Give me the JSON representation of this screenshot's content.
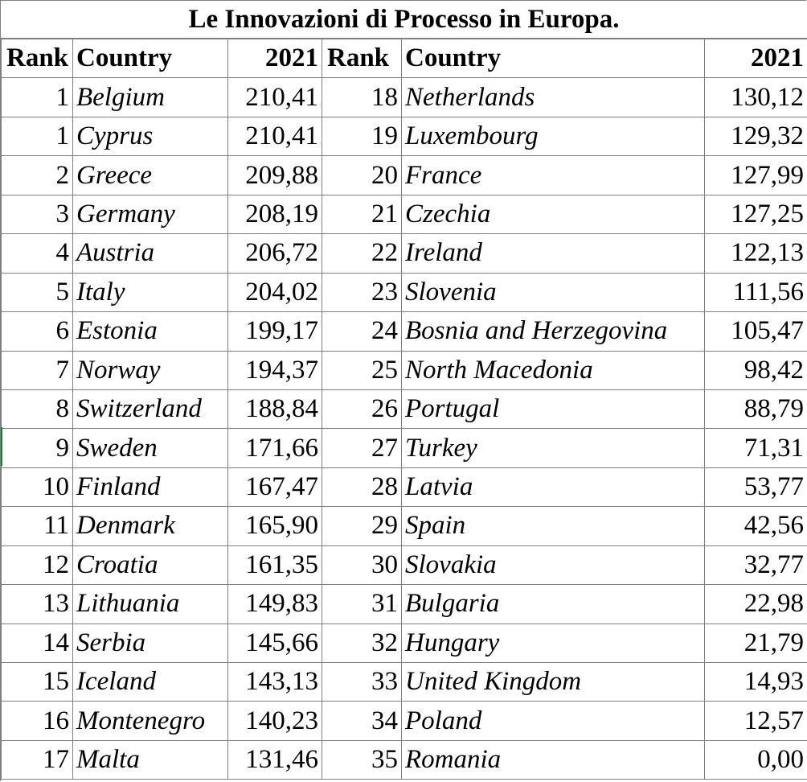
{
  "title": "Le Innovazioni di Processo in Europa.",
  "headers": {
    "rank": "Rank",
    "country": "Country",
    "year": "2021",
    "rank2": "Rank",
    "country2": "Country",
    "year2": "2021"
  },
  "rows": [
    {
      "l_rank": "1",
      "l_country": "Belgium",
      "l_value": "210,41",
      "r_rank": "18",
      "r_country": "Netherlands",
      "r_value": "130,12"
    },
    {
      "l_rank": "1",
      "l_country": "Cyprus",
      "l_value": "210,41",
      "r_rank": "19",
      "r_country": "Luxembourg",
      "r_value": "129,32"
    },
    {
      "l_rank": "2",
      "l_country": "Greece",
      "l_value": "209,88",
      "r_rank": "20",
      "r_country": "France",
      "r_value": "127,99"
    },
    {
      "l_rank": "3",
      "l_country": "Germany",
      "l_value": "208,19",
      "r_rank": "21",
      "r_country": "Czechia",
      "r_value": "127,25"
    },
    {
      "l_rank": "4",
      "l_country": "Austria",
      "l_value": "206,72",
      "r_rank": "22",
      "r_country": "Ireland",
      "r_value": "122,13"
    },
    {
      "l_rank": "5",
      "l_country": "Italy",
      "l_value": "204,02",
      "r_rank": "23",
      "r_country": "Slovenia",
      "r_value": "111,56"
    },
    {
      "l_rank": "6",
      "l_country": "Estonia",
      "l_value": "199,17",
      "r_rank": "24",
      "r_country": "Bosnia and Herzegovina",
      "r_value": "105,47"
    },
    {
      "l_rank": "7",
      "l_country": "Norway",
      "l_value": "194,37",
      "r_rank": "25",
      "r_country": "North Macedonia",
      "r_value": "98,42"
    },
    {
      "l_rank": "8",
      "l_country": "Switzerland",
      "l_value": "188,84",
      "r_rank": "26",
      "r_country": "Portugal",
      "r_value": "88,79"
    },
    {
      "l_rank": "9",
      "l_country": "Sweden",
      "l_value": "171,66",
      "r_rank": "27",
      "r_country": "Turkey",
      "r_value": "71,31"
    },
    {
      "l_rank": "10",
      "l_country": "Finland",
      "l_value": "167,47",
      "r_rank": "28",
      "r_country": "Latvia",
      "r_value": "53,77"
    },
    {
      "l_rank": "11",
      "l_country": "Denmark",
      "l_value": "165,90",
      "r_rank": "29",
      "r_country": "Spain",
      "r_value": "42,56"
    },
    {
      "l_rank": "12",
      "l_country": "Croatia",
      "l_value": "161,35",
      "r_rank": "30",
      "r_country": "Slovakia",
      "r_value": "32,77"
    },
    {
      "l_rank": "13",
      "l_country": "Lithuania",
      "l_value": "149,83",
      "r_rank": "31",
      "r_country": "Bulgaria",
      "r_value": "22,98"
    },
    {
      "l_rank": "14",
      "l_country": "Serbia",
      "l_value": "145,66",
      "r_rank": "32",
      "r_country": "Hungary",
      "r_value": "21,79"
    },
    {
      "l_rank": "15",
      "l_country": "Iceland",
      "l_value": "143,13",
      "r_rank": "33",
      "r_country": "United Kingdom",
      "r_value": "14,93"
    },
    {
      "l_rank": "16",
      "l_country": "Montenegro",
      "l_value": "140,23",
      "r_rank": "34",
      "r_country": "Poland",
      "r_value": "12,57"
    },
    {
      "l_rank": "17",
      "l_country": "Malta",
      "l_value": "131,46",
      "r_rank": "35",
      "r_country": "Romania",
      "r_value": "0,00"
    }
  ]
}
